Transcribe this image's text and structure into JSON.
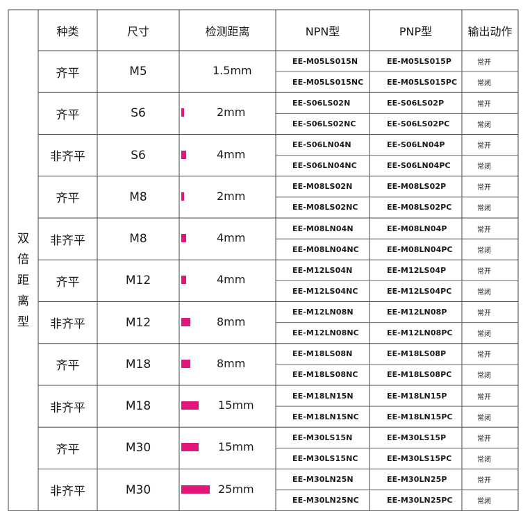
{
  "headers": [
    "种类",
    "尺寸",
    "检测距离",
    "NPN型",
    "PNP型",
    "输出动作"
  ],
  "side_label": "双倍距离型",
  "bar_color": "#e2157a",
  "groups": [
    {
      "type": "齐平",
      "size": "M5",
      "distance": "1.5mm",
      "distance_mm": 1.5,
      "npn": [
        "EE-M05LS015N",
        "EE-M05LS015NC"
      ],
      "pnp": [
        "EE-M05LS015P",
        "EE-M05LS015PC"
      ],
      "output": [
        "常开",
        "常闭"
      ]
    },
    {
      "type": "齐平",
      "size": "S6",
      "distance": "2mm",
      "distance_mm": 2,
      "npn": [
        "EE-S06LS02N",
        "EE-S06LS02NC"
      ],
      "pnp": [
        "EE-S06LS02P",
        "EE-S06LS02PC"
      ],
      "output": [
        "常开",
        "常闭"
      ]
    },
    {
      "type": "非齐平",
      "size": "S6",
      "distance": "4mm",
      "distance_mm": 4,
      "npn": [
        "EE-S06LN04N",
        "EE-S06LN04NC"
      ],
      "pnp": [
        "EE-S06LN04P",
        "EE-S06LN04PC"
      ],
      "output": [
        "常开",
        "常闭"
      ]
    },
    {
      "type": "齐平",
      "size": "M8",
      "distance": "2mm",
      "distance_mm": 2,
      "npn": [
        "EE-M08LS02N",
        "EE-M08LS02NC"
      ],
      "pnp": [
        "EE-M08LS02P",
        "EE-M08LS02PC"
      ],
      "output": [
        "常开",
        "常闭"
      ]
    },
    {
      "type": "非齐平",
      "size": "M8",
      "distance": "4mm",
      "distance_mm": 4,
      "npn": [
        "EE-M08LN04N",
        "EE-M08LN04NC"
      ],
      "pnp": [
        "EE-M08LN04P",
        "EE-M08LN04PC"
      ],
      "output": [
        "常开",
        "常闭"
      ]
    },
    {
      "type": "齐平",
      "size": "M12",
      "distance": "4mm",
      "distance_mm": 4,
      "npn": [
        "EE-M12LS04N",
        "EE-M12LS04NC"
      ],
      "pnp": [
        "EE-M12LS04P",
        "EE-M12LS04PC"
      ],
      "output": [
        "常开",
        "常闭"
      ]
    },
    {
      "type": "非齐平",
      "size": "M12",
      "distance": "8mm",
      "distance_mm": 8,
      "npn": [
        "EE-M12LN08N",
        "EE-M12LN08NC"
      ],
      "pnp": [
        "EE-M12LN08P",
        "EE-M12LN08PC"
      ],
      "output": [
        "常开",
        "常闭"
      ]
    },
    {
      "type": "齐平",
      "size": "M18",
      "distance": "8mm",
      "distance_mm": 8,
      "npn": [
        "EE-M18LS08N",
        "EE-M18LS08NC"
      ],
      "pnp": [
        "EE-M18LS08P",
        "EE-M18LS08PC"
      ],
      "output": [
        "常开",
        "常闭"
      ]
    },
    {
      "type": "非齐平",
      "size": "M18",
      "distance": "15mm",
      "distance_mm": 15,
      "npn": [
        "EE-M18LN15N",
        "EE-M18LN15NC"
      ],
      "pnp": [
        "EE-M18LN15P",
        "EE-M18LN15PC"
      ],
      "output": [
        "常开",
        "常闭"
      ]
    },
    {
      "type": "齐平",
      "size": "M30",
      "distance": "15mm",
      "distance_mm": 15,
      "npn": [
        "EE-M30LS15N",
        "EE-M30LS15NC"
      ],
      "pnp": [
        "EE-M30LS15P",
        "EE-M30LS15PC"
      ],
      "output": [
        "常开",
        "常闭"
      ]
    },
    {
      "type": "非齐平",
      "size": "M30",
      "distance": "25mm",
      "distance_mm": 25,
      "npn": [
        "EE-M30LN25N",
        "EE-M30LN25NC"
      ],
      "pnp": [
        "EE-M30LN25P",
        "EE-M30LN25PC"
      ],
      "output": [
        "常开",
        "常闭"
      ]
    }
  ]
}
